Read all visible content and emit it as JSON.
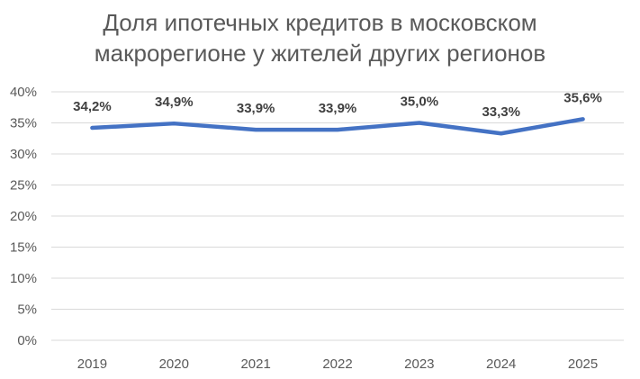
{
  "chart_data": {
    "type": "line",
    "title_lines": [
      "Доля ипотечных кредитов в московском",
      "макрорегионе у жителей других регионов"
    ],
    "categories": [
      "2019",
      "2020",
      "2021",
      "2022",
      "2023",
      "2024",
      "2025"
    ],
    "series": [
      {
        "values": [
          34.2,
          34.9,
          33.9,
          33.9,
          35.0,
          33.3,
          35.6
        ],
        "labels": [
          "34,2%",
          "34,9%",
          "33,9%",
          "33,9%",
          "35,0%",
          "33,3%",
          "35,6%"
        ],
        "color": "#4472C4"
      }
    ],
    "y_ticks": [
      {
        "value": 0,
        "label": "0%"
      },
      {
        "value": 5,
        "label": "5%"
      },
      {
        "value": 10,
        "label": "10%"
      },
      {
        "value": 15,
        "label": "15%"
      },
      {
        "value": 20,
        "label": "20%"
      },
      {
        "value": 25,
        "label": "25%"
      },
      {
        "value": 30,
        "label": "30%"
      },
      {
        "value": 35,
        "label": "35%"
      },
      {
        "value": 40,
        "label": "40%"
      }
    ],
    "ylim": [
      0,
      40
    ],
    "grid": true,
    "legend": "none",
    "gridline_color": "#D9D9D9"
  }
}
